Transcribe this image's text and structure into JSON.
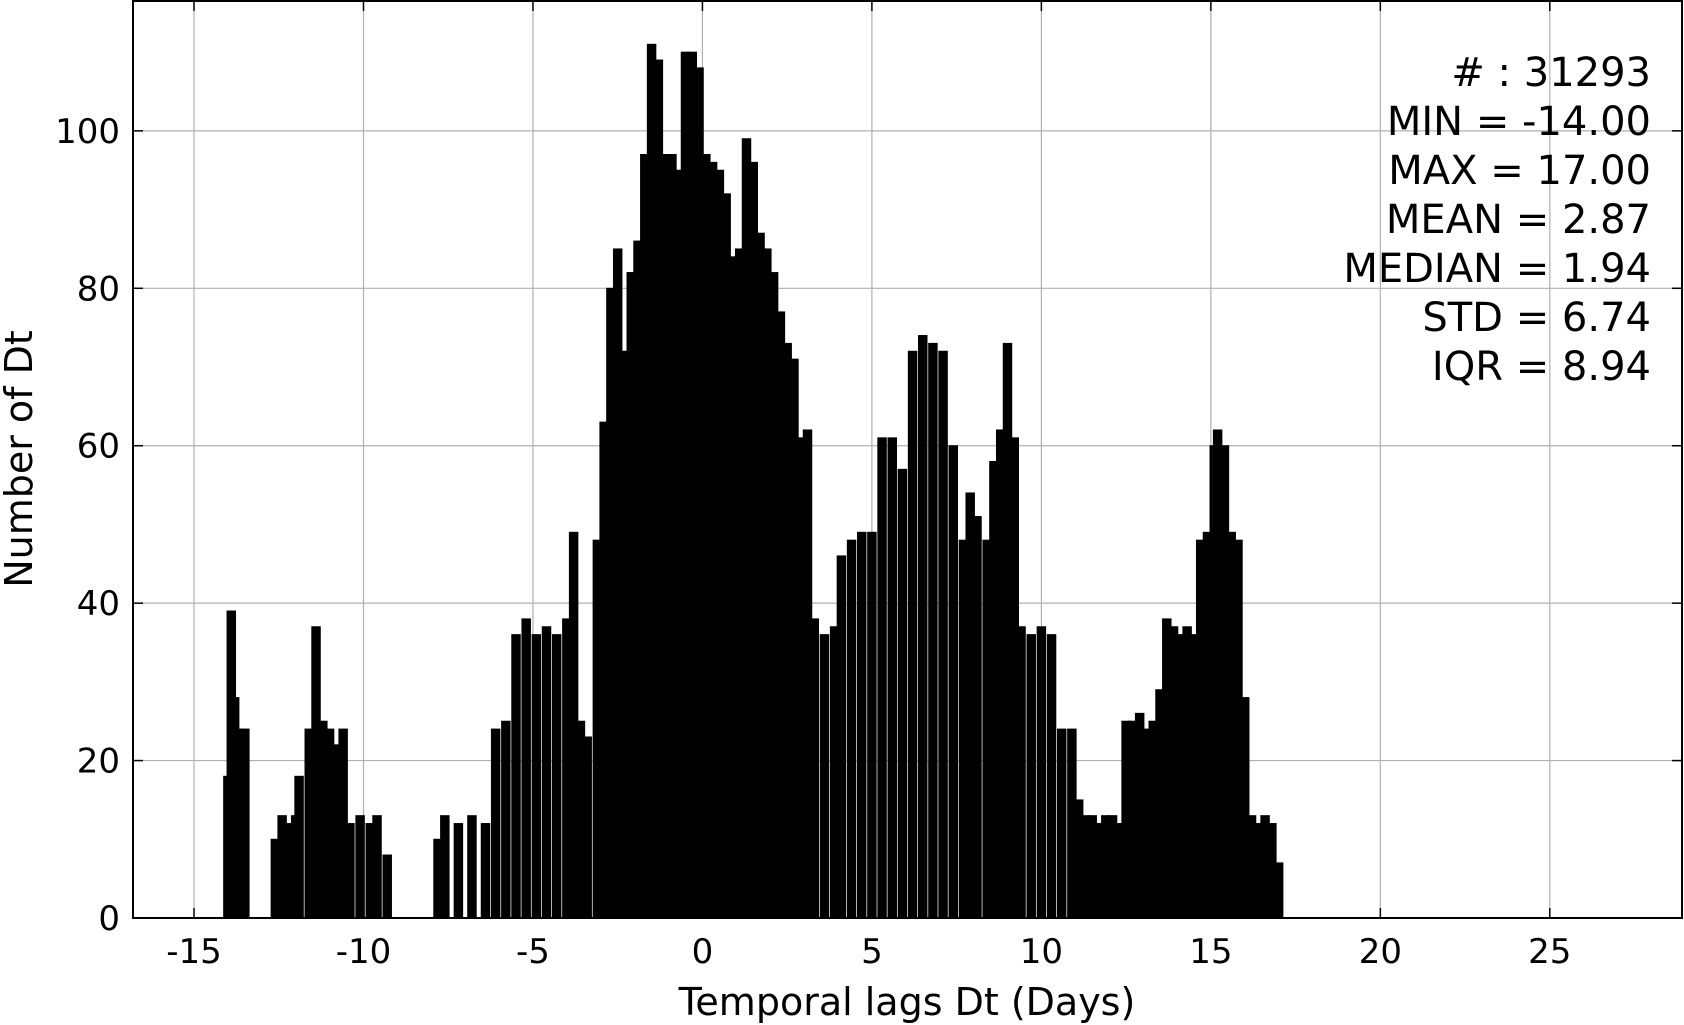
{
  "chart_data": {
    "type": "bar",
    "title": "",
    "xlabel": "Temporal lags Dt (Days)",
    "ylabel": "Number of Dt",
    "xlim": [
      -16.8,
      28.9
    ],
    "ylim": [
      0,
      116.5
    ],
    "grid": true,
    "bar_color": "#000000",
    "x_ticks": [
      -15,
      -10,
      -5,
      0,
      5,
      10,
      15,
      20,
      25
    ],
    "x_tick_labels": [
      "-15",
      "-10",
      "-5",
      "0",
      "5",
      "10",
      "15",
      "20",
      "25"
    ],
    "y_ticks": [
      0,
      20,
      40,
      60,
      80,
      100
    ],
    "y_tick_labels": [
      "0",
      "20",
      "40",
      "60",
      "80",
      "100"
    ],
    "stats": [
      "# : 31293",
      "MIN = -14.00",
      "MAX =  17.00",
      "MEAN = 2.87",
      "MEDIAN = 1.94",
      "STD = 6.74",
      "IQR = 8.94"
    ],
    "bar_width": 0.25,
    "bars": [
      [
        -14.0,
        18
      ],
      [
        -13.9,
        39
      ],
      [
        -13.8,
        28
      ],
      [
        -13.6,
        24
      ],
      [
        -13.5,
        24
      ],
      [
        -12.6,
        10
      ],
      [
        -12.4,
        13
      ],
      [
        -12.2,
        12
      ],
      [
        -12.0,
        13
      ],
      [
        -11.9,
        18
      ],
      [
        -11.6,
        24
      ],
      [
        -11.4,
        37
      ],
      [
        -11.2,
        25
      ],
      [
        -11.0,
        24
      ],
      [
        -10.8,
        22
      ],
      [
        -10.6,
        24
      ],
      [
        -10.4,
        12
      ],
      [
        -10.1,
        13
      ],
      [
        -9.8,
        12
      ],
      [
        -9.6,
        13
      ],
      [
        -9.3,
        8
      ],
      [
        -7.8,
        10
      ],
      [
        -7.6,
        13
      ],
      [
        -7.2,
        12
      ],
      [
        -6.8,
        13
      ],
      [
        -6.4,
        12
      ],
      [
        -6.1,
        24
      ],
      [
        -5.8,
        25
      ],
      [
        -5.5,
        36
      ],
      [
        -5.2,
        38
      ],
      [
        -4.9,
        36
      ],
      [
        -4.6,
        37
      ],
      [
        -4.3,
        36
      ],
      [
        -4.0,
        38
      ],
      [
        -3.8,
        49
      ],
      [
        -3.6,
        25
      ],
      [
        -3.4,
        23
      ],
      [
        -3.1,
        48
      ],
      [
        -2.9,
        63
      ],
      [
        -2.7,
        80
      ],
      [
        -2.5,
        85
      ],
      [
        -2.3,
        72
      ],
      [
        -2.1,
        82
      ],
      [
        -1.9,
        86
      ],
      [
        -1.7,
        97
      ],
      [
        -1.5,
        111
      ],
      [
        -1.3,
        109
      ],
      [
        -1.1,
        97
      ],
      [
        -0.9,
        97
      ],
      [
        -0.7,
        95
      ],
      [
        -0.5,
        110
      ],
      [
        -0.3,
        110
      ],
      [
        -0.1,
        108
      ],
      [
        0.1,
        97
      ],
      [
        0.3,
        96
      ],
      [
        0.5,
        95
      ],
      [
        0.7,
        92
      ],
      [
        0.9,
        84
      ],
      [
        1.1,
        85
      ],
      [
        1.3,
        99
      ],
      [
        1.5,
        96
      ],
      [
        1.7,
        87
      ],
      [
        1.9,
        85
      ],
      [
        2.1,
        82
      ],
      [
        2.3,
        77
      ],
      [
        2.5,
        73
      ],
      [
        2.7,
        71
      ],
      [
        2.9,
        61
      ],
      [
        3.1,
        62
      ],
      [
        3.3,
        38
      ],
      [
        3.6,
        36
      ],
      [
        3.9,
        37
      ],
      [
        4.1,
        46
      ],
      [
        4.4,
        48
      ],
      [
        4.7,
        49
      ],
      [
        5.0,
        49
      ],
      [
        5.3,
        61
      ],
      [
        5.6,
        61
      ],
      [
        5.9,
        57
      ],
      [
        6.2,
        72
      ],
      [
        6.5,
        74
      ],
      [
        6.8,
        73
      ],
      [
        7.1,
        72
      ],
      [
        7.4,
        60
      ],
      [
        7.7,
        48
      ],
      [
        7.9,
        54
      ],
      [
        8.1,
        51
      ],
      [
        8.4,
        48
      ],
      [
        8.6,
        58
      ],
      [
        8.8,
        62
      ],
      [
        9.0,
        73
      ],
      [
        9.2,
        61
      ],
      [
        9.4,
        37
      ],
      [
        9.7,
        36
      ],
      [
        10.0,
        37
      ],
      [
        10.3,
        36
      ],
      [
        10.6,
        24
      ],
      [
        10.9,
        24
      ],
      [
        11.1,
        15
      ],
      [
        11.3,
        13
      ],
      [
        11.5,
        13
      ],
      [
        11.7,
        12
      ],
      [
        11.9,
        13
      ],
      [
        12.1,
        13
      ],
      [
        12.3,
        12
      ],
      [
        12.5,
        25
      ],
      [
        12.7,
        25
      ],
      [
        12.9,
        26
      ],
      [
        13.1,
        24
      ],
      [
        13.3,
        25
      ],
      [
        13.5,
        29
      ],
      [
        13.7,
        38
      ],
      [
        13.9,
        37
      ],
      [
        14.1,
        36
      ],
      [
        14.3,
        37
      ],
      [
        14.5,
        36
      ],
      [
        14.7,
        48
      ],
      [
        14.9,
        49
      ],
      [
        15.1,
        60
      ],
      [
        15.2,
        62
      ],
      [
        15.4,
        60
      ],
      [
        15.6,
        49
      ],
      [
        15.8,
        48
      ],
      [
        16.0,
        28
      ],
      [
        16.2,
        13
      ],
      [
        16.4,
        12
      ],
      [
        16.6,
        13
      ],
      [
        16.8,
        12
      ],
      [
        17.0,
        7
      ]
    ]
  }
}
